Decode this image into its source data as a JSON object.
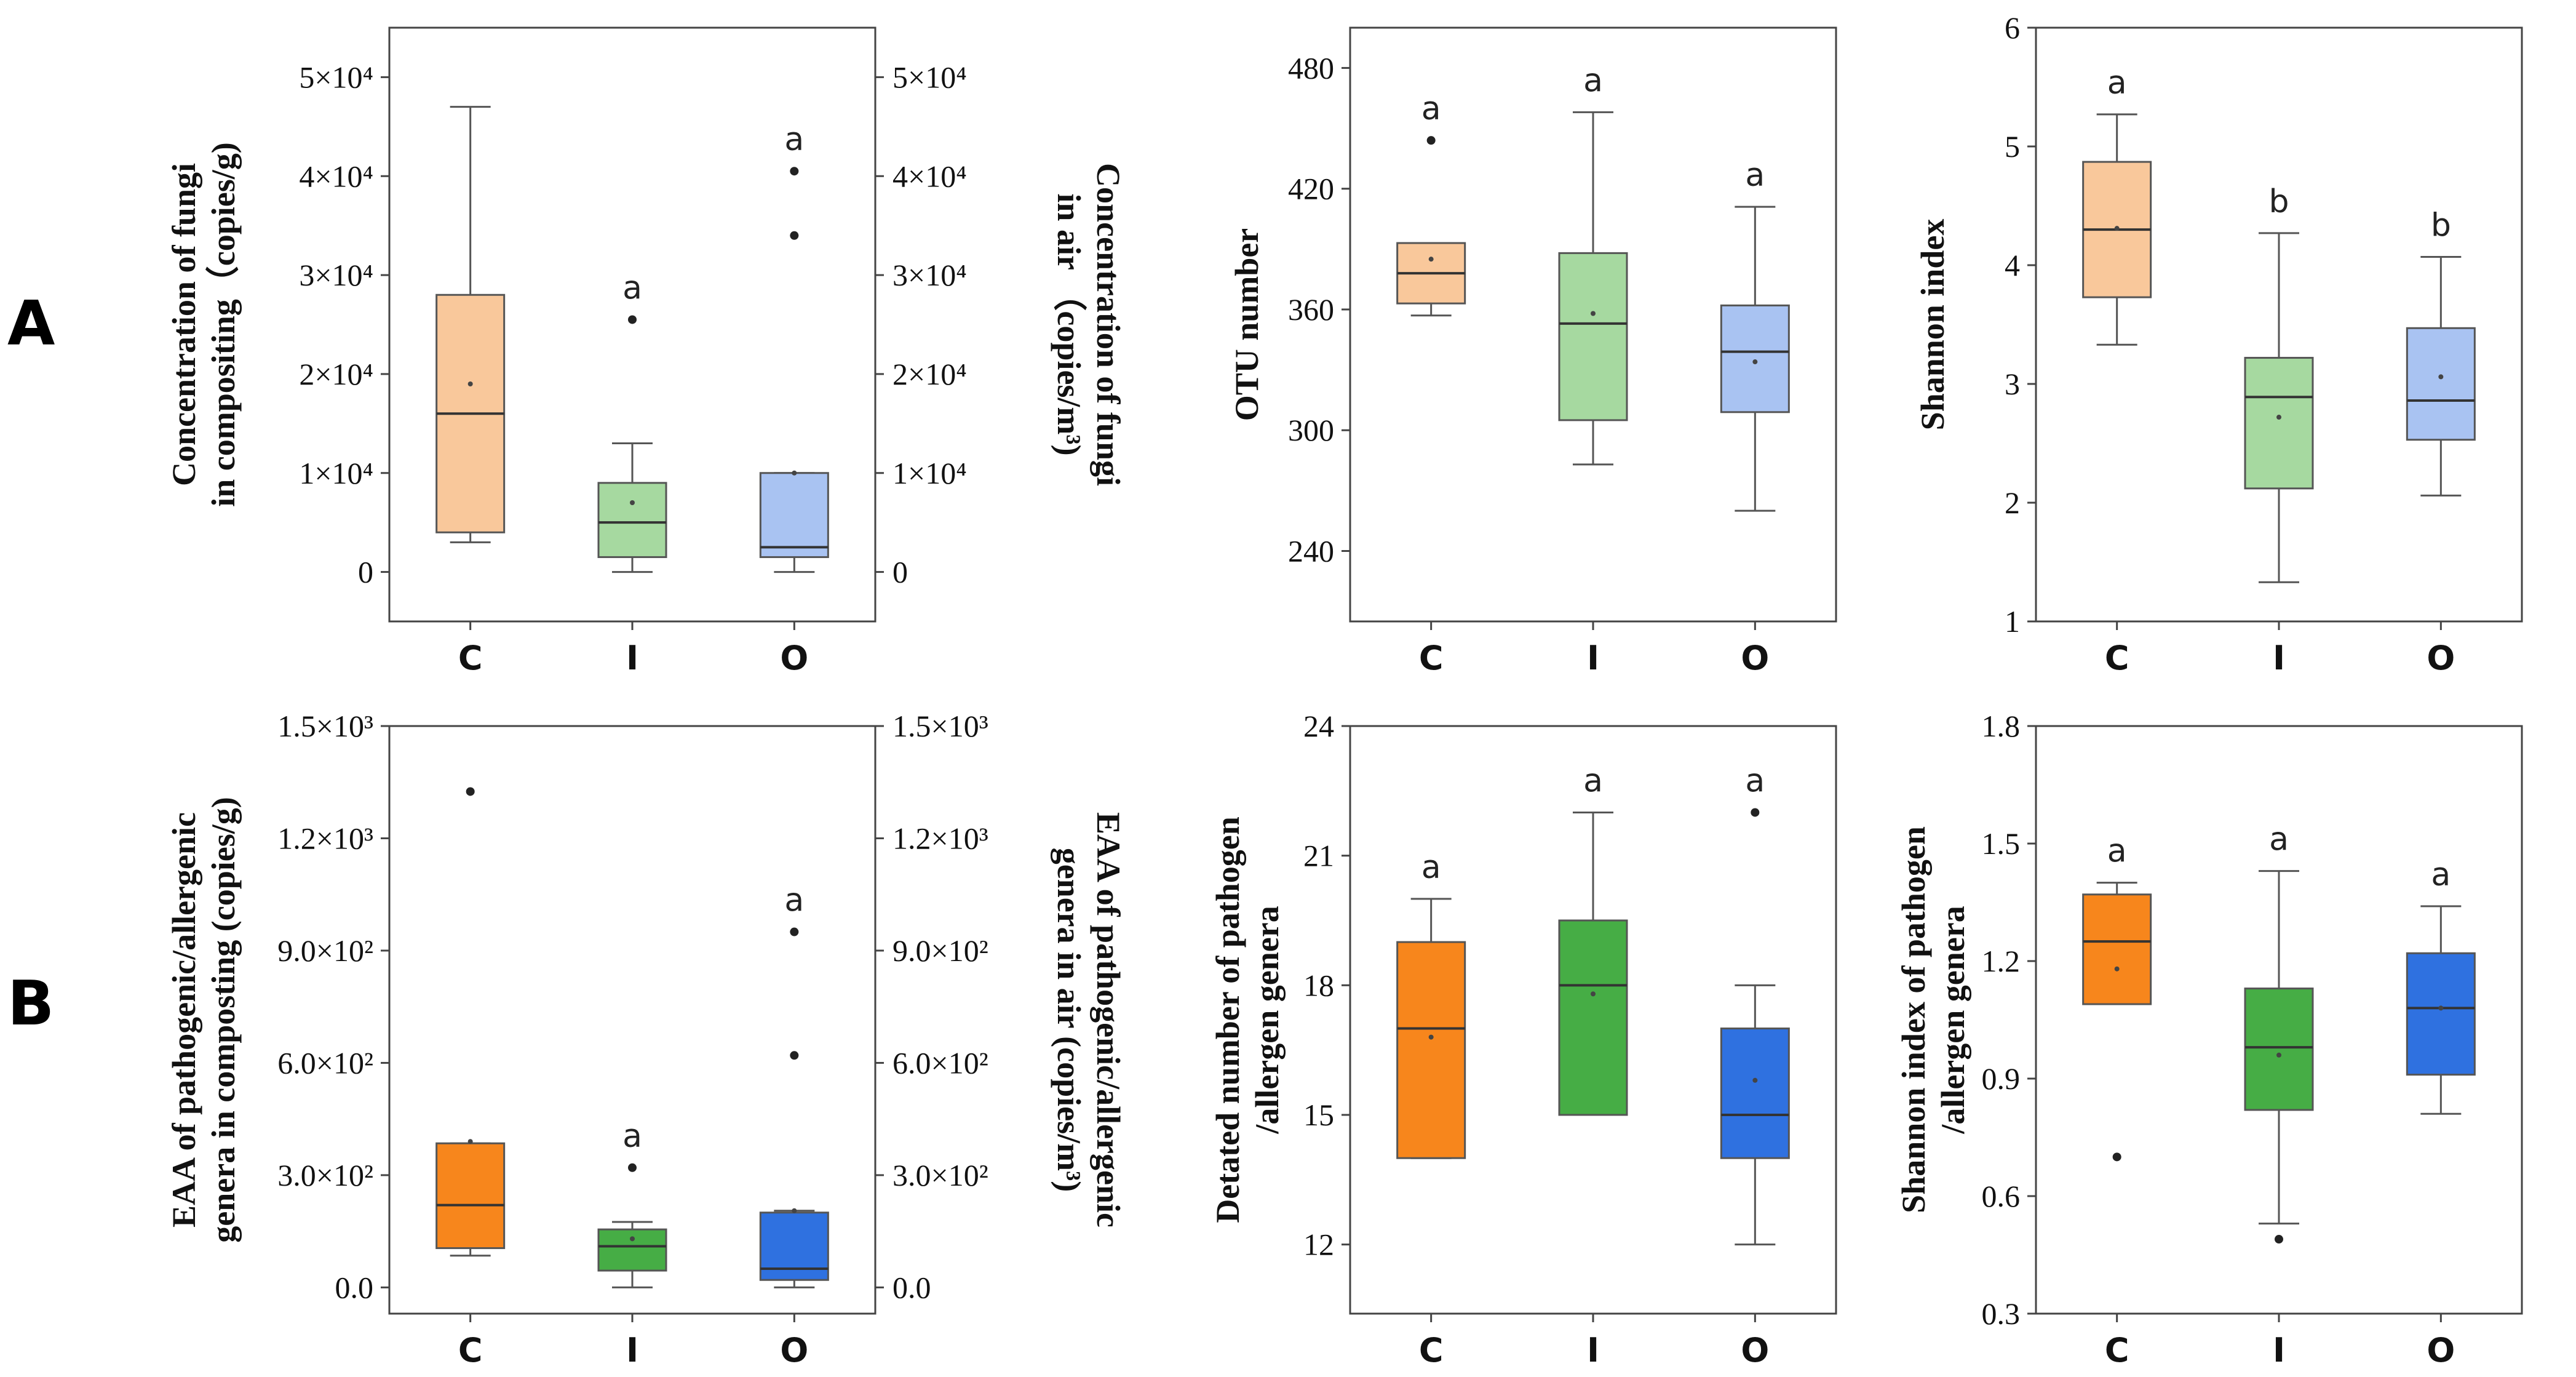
{
  "panel_labels": [
    "A",
    "B"
  ],
  "categories": [
    "C",
    "I",
    "O"
  ],
  "colors": {
    "light": [
      "#f9c89b",
      "#a6d9a0",
      "#a9c3f2"
    ],
    "dark": [
      "#f7861c",
      "#46ad45",
      "#2f71e0"
    ]
  },
  "chart_data": [
    {
      "id": "A1",
      "type": "box",
      "row": 0,
      "col": 0,
      "palette": "light",
      "ylabel_lines": [
        "Concentration of fungi",
        "in compositing（copies/g)"
      ],
      "ylabel2_lines": [
        "Concentration of fungi",
        "in air （copies/m³)"
      ],
      "ylim": [
        -5000,
        55000
      ],
      "ticks": [
        0,
        10000,
        20000,
        30000,
        40000,
        50000
      ],
      "tick_labels": [
        "0",
        "1×10⁴",
        "2×10⁴",
        "3×10⁴",
        "4×10⁴",
        "5×10⁴"
      ],
      "right_ticks": true,
      "boxes": [
        {
          "cat": "C",
          "min": 3000,
          "q1": 4000,
          "median": 16000,
          "q3": 28000,
          "max": 47000,
          "mean": 19000,
          "outliers": [],
          "sig": ""
        },
        {
          "cat": "I",
          "min": 0,
          "q1": 1500,
          "median": 5000,
          "q3": 9000,
          "max": 13000,
          "mean": 7000,
          "outliers": [
            25500
          ],
          "sig": "a"
        },
        {
          "cat": "O",
          "min": 0,
          "q1": 1500,
          "median": 2500,
          "q3": 10000,
          "max": 10000,
          "mean": 10000,
          "outliers": [
            34000,
            40500
          ],
          "sig": "a"
        }
      ]
    },
    {
      "id": "A2",
      "type": "box",
      "row": 0,
      "col": 1,
      "palette": "light",
      "ylabel_lines": [
        "OTU number"
      ],
      "ylim": [
        205,
        500
      ],
      "ticks": [
        240,
        300,
        360,
        420,
        480
      ],
      "tick_labels": [
        "240",
        "300",
        "360",
        "420",
        "480"
      ],
      "right_ticks": false,
      "boxes": [
        {
          "cat": "C",
          "min": 357,
          "q1": 363,
          "median": 378,
          "q3": 393,
          "max": 393,
          "mean": 385,
          "outliers": [
            444
          ],
          "sig": "a"
        },
        {
          "cat": "I",
          "min": 283,
          "q1": 305,
          "median": 353,
          "q3": 388,
          "max": 458,
          "mean": 358,
          "outliers": [],
          "sig": "a"
        },
        {
          "cat": "O",
          "min": 260,
          "q1": 309,
          "median": 339,
          "q3": 362,
          "max": 411,
          "mean": 334,
          "outliers": [],
          "sig": "a"
        }
      ]
    },
    {
      "id": "A3",
      "type": "box",
      "row": 0,
      "col": 2,
      "palette": "light",
      "ylabel_lines": [
        "Shannon index"
      ],
      "ylim": [
        1,
        6
      ],
      "ticks": [
        1,
        2,
        3,
        4,
        5,
        6
      ],
      "tick_labels": [
        "1",
        "2",
        "3",
        "4",
        "5",
        "6"
      ],
      "right_ticks": false,
      "boxes": [
        {
          "cat": "C",
          "min": 3.33,
          "q1": 3.73,
          "median": 4.3,
          "q3": 4.87,
          "max": 5.27,
          "mean": 4.31,
          "outliers": [],
          "sig": "a"
        },
        {
          "cat": "I",
          "min": 1.33,
          "q1": 2.12,
          "median": 2.89,
          "q3": 3.22,
          "max": 4.27,
          "mean": 2.72,
          "outliers": [],
          "sig": "b"
        },
        {
          "cat": "O",
          "min": 2.06,
          "q1": 2.53,
          "median": 2.86,
          "q3": 3.47,
          "max": 4.07,
          "mean": 3.06,
          "outliers": [],
          "sig": "b"
        }
      ]
    },
    {
      "id": "B1",
      "type": "box",
      "row": 1,
      "col": 0,
      "palette": "dark",
      "ylabel_lines": [
        "EAA of pathogenic/allergenic",
        "genera in composting (copies/g)"
      ],
      "ylabel2_lines": [
        "EAA of pathogenic/allergenic",
        "genera in air (copies/m³)"
      ],
      "ylim": [
        -70,
        1500
      ],
      "ticks": [
        0,
        300,
        600,
        900,
        1200,
        1500
      ],
      "tick_labels": [
        "0.0",
        "3.0×10²",
        "6.0×10²",
        "9.0×10²",
        "1.2×10³",
        "1.5×10³"
      ],
      "right_ticks": true,
      "boxes": [
        {
          "cat": "C",
          "min": 85,
          "q1": 105,
          "median": 220,
          "q3": 385,
          "max": 385,
          "mean": 390,
          "outliers": [
            1325
          ],
          "sig": ""
        },
        {
          "cat": "I",
          "min": 0,
          "q1": 45,
          "median": 110,
          "q3": 155,
          "max": 175,
          "mean": 130,
          "outliers": [
            320
          ],
          "sig": "a"
        },
        {
          "cat": "O",
          "min": 0,
          "q1": 20,
          "median": 50,
          "q3": 200,
          "max": 205,
          "mean": 205,
          "outliers": [
            620,
            950
          ],
          "sig": "a"
        }
      ]
    },
    {
      "id": "B2",
      "type": "box",
      "row": 1,
      "col": 1,
      "palette": "dark",
      "ylabel_lines": [
        "Detated number of pathogen",
        "/allergen genera"
      ],
      "ylim": [
        10.4,
        24
      ],
      "ticks": [
        12,
        15,
        18,
        21,
        24
      ],
      "tick_labels": [
        "12",
        "15",
        "18",
        "21",
        "24"
      ],
      "right_ticks": false,
      "boxes": [
        {
          "cat": "C",
          "min": 14,
          "q1": 14,
          "median": 17,
          "q3": 19,
          "max": 20,
          "mean": 16.8,
          "outliers": [],
          "sig": "a"
        },
        {
          "cat": "I",
          "min": 15,
          "q1": 15,
          "median": 18,
          "q3": 19.5,
          "max": 22,
          "mean": 17.8,
          "outliers": [],
          "sig": "a"
        },
        {
          "cat": "O",
          "min": 12,
          "q1": 14,
          "median": 15,
          "q3": 17,
          "max": 18,
          "mean": 15.8,
          "outliers": [
            22
          ],
          "sig": "a"
        }
      ]
    },
    {
      "id": "B3",
      "type": "box",
      "row": 1,
      "col": 2,
      "palette": "dark",
      "ylabel_lines": [
        "Shannon index of pathogen",
        "/allergen genera"
      ],
      "ylim": [
        0.3,
        1.8
      ],
      "ticks": [
        0.3,
        0.6,
        0.9,
        1.2,
        1.5,
        1.8
      ],
      "tick_labels": [
        "0.3",
        "0.6",
        "0.9",
        "1.2",
        "1.5",
        "1.8"
      ],
      "right_ticks": false,
      "boxes": [
        {
          "cat": "C",
          "min": 1.09,
          "q1": 1.09,
          "median": 1.25,
          "q3": 1.37,
          "max": 1.4,
          "mean": 1.18,
          "outliers": [
            0.7
          ],
          "sig": "a"
        },
        {
          "cat": "I",
          "min": 0.53,
          "q1": 0.82,
          "median": 0.98,
          "q3": 1.13,
          "max": 1.43,
          "mean": 0.96,
          "outliers": [
            0.49
          ],
          "sig": "a"
        },
        {
          "cat": "O",
          "min": 0.81,
          "q1": 0.91,
          "median": 1.08,
          "q3": 1.22,
          "max": 1.34,
          "mean": 1.08,
          "outliers": [],
          "sig": "a"
        }
      ]
    }
  ]
}
